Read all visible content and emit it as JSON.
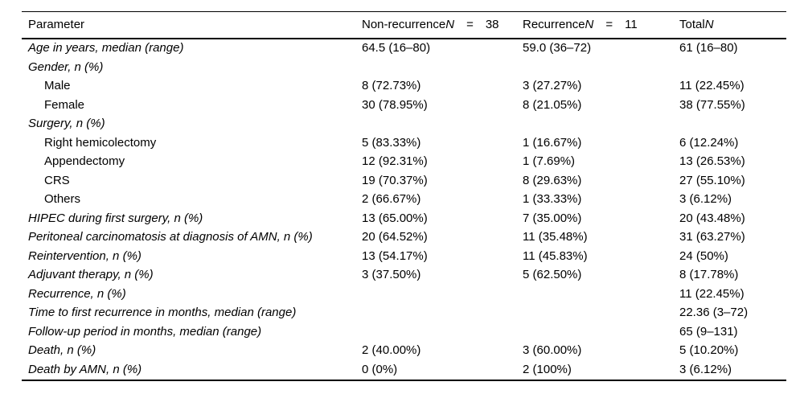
{
  "table": {
    "header": {
      "parameter": "Parameter",
      "non_recurrence": {
        "label": "Non-recurrence",
        "n_symbol": "N",
        "eq": "=",
        "value": "38"
      },
      "recurrence": {
        "label": "Recurrence",
        "n_symbol": "N",
        "eq": "=",
        "value": "11"
      },
      "total": {
        "label": "Total",
        "n_symbol": "N"
      }
    },
    "rows": [
      {
        "type": "main",
        "parameter": "Age in years, median (range)",
        "non_recurrence": "64.5 (16–80)",
        "recurrence": "59.0 (36–72)",
        "total": "61 (16–80)"
      },
      {
        "type": "main",
        "parameter": "Gender, n (%)",
        "non_recurrence": "",
        "recurrence": "",
        "total": ""
      },
      {
        "type": "sub",
        "parameter": "Male",
        "non_recurrence": "8 (72.73%)",
        "recurrence": "3 (27.27%)",
        "total": "11 (22.45%)"
      },
      {
        "type": "sub",
        "parameter": "Female",
        "non_recurrence": "30 (78.95%)",
        "recurrence": "8 (21.05%)",
        "total": "38 (77.55%)"
      },
      {
        "type": "main",
        "parameter": "Surgery, n (%)",
        "non_recurrence": "",
        "recurrence": "",
        "total": ""
      },
      {
        "type": "sub",
        "parameter": "Right hemicolectomy",
        "non_recurrence": "5 (83.33%)",
        "recurrence": "1 (16.67%)",
        "total": "6 (12.24%)"
      },
      {
        "type": "sub",
        "parameter": "Appendectomy",
        "non_recurrence": "12 (92.31%)",
        "recurrence": "1 (7.69%)",
        "total": "13 (26.53%)"
      },
      {
        "type": "sub",
        "parameter": "CRS",
        "non_recurrence": "19 (70.37%)",
        "recurrence": "8 (29.63%)",
        "total": "27 (55.10%)"
      },
      {
        "type": "sub",
        "parameter": "Others",
        "non_recurrence": "2 (66.67%)",
        "recurrence": "1 (33.33%)",
        "total": "3 (6.12%)"
      },
      {
        "type": "main",
        "parameter": "HIPEC during first surgery, n (%)",
        "non_recurrence": "13 (65.00%)",
        "recurrence": "7 (35.00%)",
        "total": "20 (43.48%)"
      },
      {
        "type": "main",
        "parameter": "Peritoneal carcinomatosis at diagnosis of AMN, n (%)",
        "non_recurrence": "20 (64.52%)",
        "recurrence": "11 (35.48%)",
        "total": "31 (63.27%)"
      },
      {
        "type": "main",
        "parameter": "Reintervention, n (%)",
        "non_recurrence": "13 (54.17%)",
        "recurrence": "11 (45.83%)",
        "total": "24 (50%)"
      },
      {
        "type": "main",
        "parameter": "Adjuvant therapy, n (%)",
        "non_recurrence": "3 (37.50%)",
        "recurrence": "5 (62.50%)",
        "total": "8 (17.78%)"
      },
      {
        "type": "main",
        "parameter": "Recurrence, n (%)",
        "non_recurrence": "",
        "recurrence": "",
        "total": "11 (22.45%)"
      },
      {
        "type": "main",
        "parameter": "Time to first recurrence in months, median (range)",
        "non_recurrence": "",
        "recurrence": "",
        "total": "22.36 (3–72)"
      },
      {
        "type": "main",
        "parameter": "Follow-up period in months, median (range)",
        "non_recurrence": "",
        "recurrence": "",
        "total": "65 (9–131)"
      },
      {
        "type": "main",
        "parameter": "Death, n (%)",
        "non_recurrence": "2 (40.00%)",
        "recurrence": "3 (60.00%)",
        "total": "5 (10.20%)"
      },
      {
        "type": "main",
        "parameter": "Death by AMN, n (%)",
        "non_recurrence": "0 (0%)",
        "recurrence": "2 (100%)",
        "total": "3 (6.12%)"
      }
    ]
  }
}
